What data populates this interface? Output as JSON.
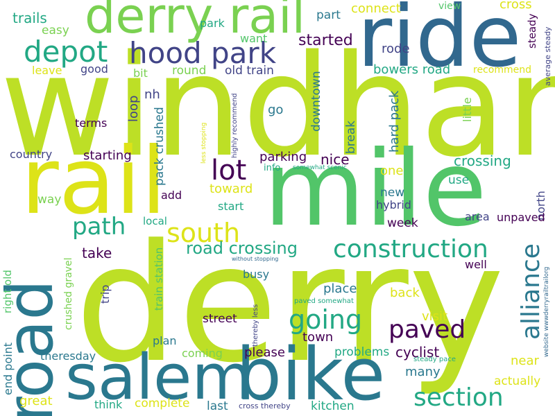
{
  "palette": {
    "yellow_green": "#bddf26",
    "green": "#7ad151",
    "mid_green": "#52c569",
    "teal": "#22a884",
    "teal_blue": "#2a788e",
    "blue": "#31688e",
    "indigo": "#414487",
    "purple": "#440154",
    "yellow": "#dde318"
  },
  "words": [
    {
      "text": "derry",
      "color": "#bddf26"
    },
    {
      "text": "windham",
      "color": "#bddf26"
    },
    {
      "text": "mile",
      "color": "#52c569"
    },
    {
      "text": "rail",
      "color": "#dde318"
    },
    {
      "text": "ride",
      "color": "#31688e"
    },
    {
      "text": "bike",
      "color": "#2a788e"
    },
    {
      "text": "salem",
      "color": "#2a788e"
    },
    {
      "text": "road",
      "color": "#2a788e"
    },
    {
      "text": "derry rail",
      "color": "#7ad151"
    },
    {
      "text": "hood park",
      "color": "#414487"
    },
    {
      "text": "depot",
      "color": "#22a884"
    },
    {
      "text": "lot",
      "color": "#440154"
    },
    {
      "text": "path",
      "color": "#22a884"
    },
    {
      "text": "south",
      "color": "#dde318"
    },
    {
      "text": "construction",
      "color": "#22a884"
    },
    {
      "text": "alliance",
      "color": "#2a788e"
    },
    {
      "text": "going",
      "color": "#22a884"
    },
    {
      "text": "paved",
      "color": "#440154"
    },
    {
      "text": "section",
      "color": "#22a884"
    },
    {
      "text": "road crossing",
      "color": "#22a884"
    },
    {
      "text": "trails",
      "color": "#22a884"
    },
    {
      "text": "easy",
      "color": "#7ad151"
    },
    {
      "text": "park",
      "color": "#22a884"
    },
    {
      "text": "want",
      "color": "#52c569"
    },
    {
      "text": "started",
      "color": "#440154"
    },
    {
      "text": "part",
      "color": "#2a788e"
    },
    {
      "text": "connect",
      "color": "#dde318"
    },
    {
      "text": "view",
      "color": "#52c569"
    },
    {
      "text": "cross",
      "color": "#dde318"
    },
    {
      "text": "steady",
      "color": "#440154"
    },
    {
      "text": "rode",
      "color": "#414487"
    },
    {
      "text": "bowers road",
      "color": "#22a884"
    },
    {
      "text": "recommend",
      "color": "#dde318"
    },
    {
      "text": "average steady",
      "color": "#414487"
    },
    {
      "text": "leave",
      "color": "#dde318"
    },
    {
      "text": "good",
      "color": "#414487"
    },
    {
      "text": "bit",
      "color": "#7ad151"
    },
    {
      "text": "round",
      "color": "#7ad151"
    },
    {
      "text": "old train",
      "color": "#414487"
    },
    {
      "text": "nh",
      "color": "#414487"
    },
    {
      "text": "loop",
      "color": "#414487"
    },
    {
      "text": "pack crushed",
      "color": "#2a788e"
    },
    {
      "text": "go",
      "color": "#2a788e"
    },
    {
      "text": "downtown",
      "color": "#2a788e"
    },
    {
      "text": "break",
      "color": "#2a788e"
    },
    {
      "text": "hard pack",
      "color": "#2a788e"
    },
    {
      "text": "little",
      "color": "#7ad151"
    },
    {
      "text": "terms",
      "color": "#440154"
    },
    {
      "text": "highly recommend",
      "color": "#414487"
    },
    {
      "text": "less stopping",
      "color": "#dde318"
    },
    {
      "text": "country",
      "color": "#414487"
    },
    {
      "text": "starting",
      "color": "#440154"
    },
    {
      "text": "parking",
      "color": "#440154"
    },
    {
      "text": "nice",
      "color": "#440154"
    },
    {
      "text": "crossing",
      "color": "#22a884"
    },
    {
      "text": "info",
      "color": "#22a884"
    },
    {
      "text": "somewhat scenic",
      "color": "#22a884"
    },
    {
      "text": "one",
      "color": "#dde318"
    },
    {
      "text": "toward",
      "color": "#dde318"
    },
    {
      "text": "use",
      "color": "#22a884"
    },
    {
      "text": "new",
      "color": "#2a788e"
    },
    {
      "text": "north",
      "color": "#414487"
    },
    {
      "text": "add",
      "color": "#440154"
    },
    {
      "text": "way",
      "color": "#7ad151"
    },
    {
      "text": "hybrid",
      "color": "#414487"
    },
    {
      "text": "start",
      "color": "#22a884"
    },
    {
      "text": "area",
      "color": "#414487"
    },
    {
      "text": "unpaved",
      "color": "#440154"
    },
    {
      "text": "local",
      "color": "#22a884"
    },
    {
      "text": "week",
      "color": "#440154"
    },
    {
      "text": "take",
      "color": "#440154"
    },
    {
      "text": "without stopping",
      "color": "#31688e"
    },
    {
      "text": "train station",
      "color": "#52c569"
    },
    {
      "text": "right old",
      "color": "#52c569"
    },
    {
      "text": "end point",
      "color": "#2a788e"
    },
    {
      "text": "crushed gravel",
      "color": "#7ad151"
    },
    {
      "text": "well",
      "color": "#440154"
    },
    {
      "text": "website wwwderryrailtrailorg",
      "color": "#31688e"
    },
    {
      "text": "busy",
      "color": "#2a788e"
    },
    {
      "text": "place",
      "color": "#2a788e"
    },
    {
      "text": "back",
      "color": "#dde318"
    },
    {
      "text": "paved somewhat",
      "color": "#22a884"
    },
    {
      "text": "trip",
      "color": "#414487"
    },
    {
      "text": "thereby less",
      "color": "#414487"
    },
    {
      "text": "visit",
      "color": "#dde318"
    },
    {
      "text": "street",
      "color": "#440154"
    },
    {
      "text": "town",
      "color": "#440154"
    },
    {
      "text": "plan",
      "color": "#2a788e"
    },
    {
      "text": "theresday",
      "color": "#2a788e"
    },
    {
      "text": "coming",
      "color": "#7ad151"
    },
    {
      "text": "please",
      "color": "#440154"
    },
    {
      "text": "problems",
      "color": "#22a884"
    },
    {
      "text": "cyclist",
      "color": "#440154"
    },
    {
      "text": "near",
      "color": "#dde318"
    },
    {
      "text": "steady pace",
      "color": "#22a884"
    },
    {
      "text": "many",
      "color": "#2a788e"
    },
    {
      "text": "actually",
      "color": "#dde318"
    },
    {
      "text": "great",
      "color": "#dde318"
    },
    {
      "text": "think",
      "color": "#22a884"
    },
    {
      "text": "complete",
      "color": "#dde318"
    },
    {
      "text": "last",
      "color": "#2a788e"
    },
    {
      "text": "cross thereby",
      "color": "#414487"
    },
    {
      "text": "kitchen",
      "color": "#22a884"
    }
  ]
}
